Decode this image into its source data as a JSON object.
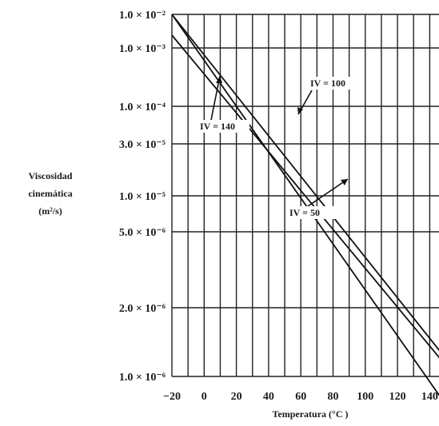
{
  "chart_data": {
    "type": "line",
    "title": "",
    "xlabel": "Temperatura (°C )",
    "ylabel_lines": [
      "Viscosidad",
      "cinemática",
      "(m²/s)"
    ],
    "xlim": [
      -20,
      150
    ],
    "x_ticks": [
      -20,
      0,
      20,
      40,
      60,
      80,
      100,
      120,
      140
    ],
    "y_ticks": [
      {
        "label": "1.0 × 10⁻²"
      },
      {
        "label": "1.0 × 10⁻³"
      },
      {
        "label": "1.0 × 10⁻⁴"
      },
      {
        "label": "3.0 × 10⁻⁵"
      },
      {
        "label": "1.0 × 10⁻⁵"
      },
      {
        "label": "5.0 × 10⁻⁶"
      },
      {
        "label": "2.0 × 10⁻⁶"
      },
      {
        "label": "1.0 × 10⁻⁶"
      }
    ],
    "grid": true,
    "series": [
      {
        "name": "IV = 50",
        "x": [
          -20,
          150
        ],
        "tick_index": [
          0,
          7.41
        ]
      },
      {
        "name": "IV = 100",
        "x": [
          -20,
          150
        ],
        "tick_index": [
          0,
          6.74
        ]
      },
      {
        "name": "IV = 140",
        "x": [
          -20,
          150
        ],
        "tick_index": [
          0.62,
          6.84
        ]
      }
    ],
    "annotations": [
      {
        "text": "IV = 100",
        "series": "IV = 100"
      },
      {
        "text": "IV = 140",
        "series": "IV = 140"
      },
      {
        "text": "IV = 50",
        "series": "IV = 50"
      }
    ]
  }
}
